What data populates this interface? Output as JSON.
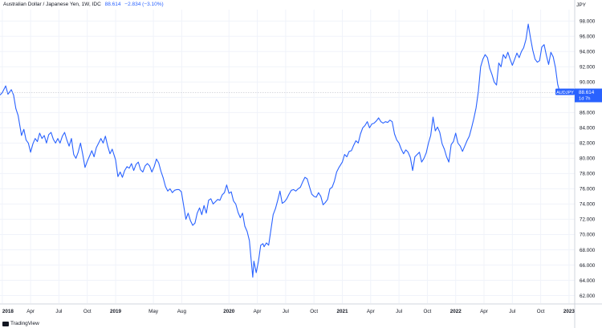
{
  "header": {
    "title": "Australian Dollar / Japanese Yen, 1W, IDC",
    "last": "88.614",
    "change": "−2.834 (−3.10%)"
  },
  "axis_unit": "JPY",
  "price_tag": {
    "symbol": "AUDJPY",
    "value": "88.614",
    "countdown": "1d 7h"
  },
  "brand": "TradingView",
  "colors": {
    "line": "#2962ff",
    "grid": "#f0f3fa",
    "tag_bg": "#2962ff",
    "text": "#131722"
  },
  "chart_data": {
    "type": "line",
    "title": "Australian Dollar / Japanese Yen, 1W, IDC",
    "ylabel": "JPY",
    "ylim": [
      61,
      99.5
    ],
    "y_ticks": [
      62,
      64,
      66,
      68,
      70,
      72,
      74,
      76,
      78,
      80,
      82,
      84,
      86,
      88,
      90,
      92,
      94,
      96,
      98
    ],
    "y_tick_labels": [
      "62.000",
      "64.000",
      "66.000",
      "68.000",
      "70.000",
      "72.000",
      "74.000",
      "76.000",
      "78.000",
      "80.000",
      "82.000",
      "84.000",
      "86.000",
      "88.000",
      "90.000",
      "92.000",
      "94.000",
      "96.000",
      "98.000"
    ],
    "x_ticks": [
      {
        "label": "2018",
        "t": 2018.0,
        "bold": true
      },
      {
        "label": "Apr",
        "t": 2018.25
      },
      {
        "label": "Jul",
        "t": 2018.5
      },
      {
        "label": "Oct",
        "t": 2018.75
      },
      {
        "label": "2019",
        "t": 2019.0,
        "bold": true
      },
      {
        "label": "May",
        "t": 2019.333
      },
      {
        "label": "Aug",
        "t": 2019.583
      },
      {
        "label": "2020",
        "t": 2020.0,
        "bold": true
      },
      {
        "label": "Apr",
        "t": 2020.25
      },
      {
        "label": "Jul",
        "t": 2020.5
      },
      {
        "label": "Oct",
        "t": 2020.75
      },
      {
        "label": "2021",
        "t": 2021.0,
        "bold": true
      },
      {
        "label": "Apr",
        "t": 2021.25
      },
      {
        "label": "Jul",
        "t": 2021.5
      },
      {
        "label": "Oct",
        "t": 2021.75
      },
      {
        "label": "2022",
        "t": 2022.0,
        "bold": true
      },
      {
        "label": "Apr",
        "t": 2022.25
      },
      {
        "label": "Jul",
        "t": 2022.5
      },
      {
        "label": "Oct",
        "t": 2022.75
      },
      {
        "label": "2023",
        "t": 2023.0,
        "bold": true
      }
    ],
    "grid": true,
    "series": [
      {
        "name": "AUDJPY",
        "points": [
          [
            2017.98,
            88.3
          ],
          [
            2018.0,
            88.6
          ],
          [
            2018.03,
            89.5
          ],
          [
            2018.05,
            88.4
          ],
          [
            2018.08,
            89.0
          ],
          [
            2018.1,
            88.3
          ],
          [
            2018.12,
            86.5
          ],
          [
            2018.14,
            85.6
          ],
          [
            2018.17,
            83.0
          ],
          [
            2018.19,
            83.8
          ],
          [
            2018.21,
            82.4
          ],
          [
            2018.23,
            82.0
          ],
          [
            2018.25,
            80.8
          ],
          [
            2018.27,
            81.9
          ],
          [
            2018.29,
            82.6
          ],
          [
            2018.31,
            82.2
          ],
          [
            2018.33,
            83.3
          ],
          [
            2018.35,
            82.6
          ],
          [
            2018.37,
            83.0
          ],
          [
            2018.39,
            82.0
          ],
          [
            2018.41,
            83.1
          ],
          [
            2018.43,
            83.4
          ],
          [
            2018.45,
            82.5
          ],
          [
            2018.47,
            82.0
          ],
          [
            2018.49,
            82.6
          ],
          [
            2018.51,
            82.0
          ],
          [
            2018.53,
            82.9
          ],
          [
            2018.55,
            83.4
          ],
          [
            2018.57,
            82.4
          ],
          [
            2018.59,
            81.6
          ],
          [
            2018.61,
            82.6
          ],
          [
            2018.63,
            80.5
          ],
          [
            2018.65,
            80.0
          ],
          [
            2018.67,
            80.8
          ],
          [
            2018.69,
            82.0
          ],
          [
            2018.71,
            80.5
          ],
          [
            2018.73,
            78.8
          ],
          [
            2018.75,
            79.6
          ],
          [
            2018.77,
            80.3
          ],
          [
            2018.79,
            81.0
          ],
          [
            2018.81,
            80.2
          ],
          [
            2018.83,
            81.4
          ],
          [
            2018.85,
            82.0
          ],
          [
            2018.87,
            82.6
          ],
          [
            2018.89,
            82.0
          ],
          [
            2018.91,
            82.9
          ],
          [
            2018.93,
            81.6
          ],
          [
            2018.95,
            80.6
          ],
          [
            2018.97,
            81.2
          ],
          [
            2019.0,
            79.8
          ],
          [
            2019.02,
            77.6
          ],
          [
            2019.04,
            78.2
          ],
          [
            2019.06,
            77.5
          ],
          [
            2019.08,
            78.4
          ],
          [
            2019.1,
            78.9
          ],
          [
            2019.12,
            78.7
          ],
          [
            2019.14,
            79.3
          ],
          [
            2019.16,
            78.4
          ],
          [
            2019.18,
            79.2
          ],
          [
            2019.2,
            79.5
          ],
          [
            2019.22,
            78.5
          ],
          [
            2019.24,
            78.2
          ],
          [
            2019.26,
            79.0
          ],
          [
            2019.28,
            79.3
          ],
          [
            2019.3,
            79.0
          ],
          [
            2019.32,
            78.2
          ],
          [
            2019.34,
            78.9
          ],
          [
            2019.36,
            79.9
          ],
          [
            2019.38,
            79.4
          ],
          [
            2019.4,
            78.3
          ],
          [
            2019.42,
            77.4
          ],
          [
            2019.44,
            76.3
          ],
          [
            2019.46,
            75.7
          ],
          [
            2019.48,
            76.0
          ],
          [
            2019.5,
            75.5
          ],
          [
            2019.52,
            75.8
          ],
          [
            2019.54,
            75.9
          ],
          [
            2019.56,
            75.9
          ],
          [
            2019.58,
            75.6
          ],
          [
            2019.6,
            73.8
          ],
          [
            2019.62,
            72.0
          ],
          [
            2019.64,
            72.8
          ],
          [
            2019.66,
            71.8
          ],
          [
            2019.68,
            71.2
          ],
          [
            2019.7,
            71.5
          ],
          [
            2019.72,
            72.8
          ],
          [
            2019.74,
            73.5
          ],
          [
            2019.76,
            72.6
          ],
          [
            2019.78,
            73.8
          ],
          [
            2019.8,
            72.8
          ],
          [
            2019.82,
            74.5
          ],
          [
            2019.84,
            74.7
          ],
          [
            2019.86,
            74.0
          ],
          [
            2019.88,
            74.3
          ],
          [
            2019.9,
            74.6
          ],
          [
            2019.92,
            74.5
          ],
          [
            2019.94,
            75.2
          ],
          [
            2019.96,
            75.5
          ],
          [
            2019.98,
            76.5
          ],
          [
            2020.0,
            75.4
          ],
          [
            2020.02,
            75.6
          ],
          [
            2020.04,
            74.4
          ],
          [
            2020.06,
            74.0
          ],
          [
            2020.08,
            72.9
          ],
          [
            2020.1,
            72.2
          ],
          [
            2020.12,
            72.8
          ],
          [
            2020.14,
            71.1
          ],
          [
            2020.16,
            70.4
          ],
          [
            2020.18,
            69.2
          ],
          [
            2020.2,
            66.0
          ],
          [
            2020.21,
            64.4
          ],
          [
            2020.22,
            66.5
          ],
          [
            2020.24,
            65.0
          ],
          [
            2020.26,
            66.5
          ],
          [
            2020.28,
            68.6
          ],
          [
            2020.3,
            68.8
          ],
          [
            2020.31,
            68.4
          ],
          [
            2020.33,
            68.9
          ],
          [
            2020.35,
            68.6
          ],
          [
            2020.37,
            70.6
          ],
          [
            2020.39,
            72.6
          ],
          [
            2020.41,
            73.4
          ],
          [
            2020.43,
            74.5
          ],
          [
            2020.45,
            75.7
          ],
          [
            2020.47,
            74.1
          ],
          [
            2020.49,
            74.3
          ],
          [
            2020.51,
            74.7
          ],
          [
            2020.53,
            75.3
          ],
          [
            2020.55,
            75.8
          ],
          [
            2020.57,
            75.9
          ],
          [
            2020.59,
            75.7
          ],
          [
            2020.61,
            76.0
          ],
          [
            2020.63,
            76.2
          ],
          [
            2020.65,
            76.9
          ],
          [
            2020.67,
            77.5
          ],
          [
            2020.69,
            77.3
          ],
          [
            2020.71,
            76.3
          ],
          [
            2020.73,
            75.3
          ],
          [
            2020.75,
            75.0
          ],
          [
            2020.77,
            74.9
          ],
          [
            2020.79,
            75.5
          ],
          [
            2020.81,
            75.0
          ],
          [
            2020.83,
            73.9
          ],
          [
            2020.85,
            74.2
          ],
          [
            2020.87,
            74.6
          ],
          [
            2020.89,
            76.0
          ],
          [
            2020.91,
            76.2
          ],
          [
            2020.93,
            77.0
          ],
          [
            2020.95,
            78.2
          ],
          [
            2020.97,
            78.8
          ],
          [
            2021.0,
            79.5
          ],
          [
            2021.02,
            80.5
          ],
          [
            2021.04,
            80.2
          ],
          [
            2021.06,
            80.9
          ],
          [
            2021.08,
            81.0
          ],
          [
            2021.1,
            81.7
          ],
          [
            2021.12,
            82.3
          ],
          [
            2021.14,
            82.0
          ],
          [
            2021.16,
            83.2
          ],
          [
            2021.18,
            84.0
          ],
          [
            2021.2,
            84.3
          ],
          [
            2021.22,
            84.8
          ],
          [
            2021.24,
            84.0
          ],
          [
            2021.26,
            84.5
          ],
          [
            2021.28,
            84.6
          ],
          [
            2021.3,
            84.9
          ],
          [
            2021.32,
            85.3
          ],
          [
            2021.34,
            84.8
          ],
          [
            2021.36,
            84.6
          ],
          [
            2021.38,
            84.8
          ],
          [
            2021.4,
            84.7
          ],
          [
            2021.42,
            85.0
          ],
          [
            2021.44,
            84.8
          ],
          [
            2021.46,
            83.2
          ],
          [
            2021.48,
            82.4
          ],
          [
            2021.5,
            82.0
          ],
          [
            2021.52,
            81.2
          ],
          [
            2021.54,
            80.6
          ],
          [
            2021.56,
            81.1
          ],
          [
            2021.58,
            80.8
          ],
          [
            2021.6,
            80.1
          ],
          [
            2021.62,
            78.4
          ],
          [
            2021.64,
            80.2
          ],
          [
            2021.66,
            80.5
          ],
          [
            2021.68,
            80.8
          ],
          [
            2021.7,
            79.5
          ],
          [
            2021.72,
            80.0
          ],
          [
            2021.74,
            80.7
          ],
          [
            2021.76,
            82.0
          ],
          [
            2021.78,
            83.0
          ],
          [
            2021.8,
            85.4
          ],
          [
            2021.82,
            83.6
          ],
          [
            2021.84,
            84.1
          ],
          [
            2021.86,
            83.4
          ],
          [
            2021.88,
            81.9
          ],
          [
            2021.9,
            81.2
          ],
          [
            2021.92,
            80.2
          ],
          [
            2021.94,
            79.5
          ],
          [
            2021.96,
            81.8
          ],
          [
            2021.98,
            82.2
          ],
          [
            2022.0,
            83.3
          ],
          [
            2022.02,
            82.0
          ],
          [
            2022.04,
            81.6
          ],
          [
            2022.06,
            80.9
          ],
          [
            2022.08,
            81.6
          ],
          [
            2022.1,
            82.3
          ],
          [
            2022.12,
            82.9
          ],
          [
            2022.14,
            84.0
          ],
          [
            2022.16,
            85.2
          ],
          [
            2022.18,
            86.6
          ],
          [
            2022.2,
            88.8
          ],
          [
            2022.22,
            92.0
          ],
          [
            2022.24,
            93.0
          ],
          [
            2022.26,
            93.6
          ],
          [
            2022.28,
            93.2
          ],
          [
            2022.3,
            91.8
          ],
          [
            2022.32,
            91.0
          ],
          [
            2022.34,
            90.0
          ],
          [
            2022.36,
            89.6
          ],
          [
            2022.38,
            92.5
          ],
          [
            2022.4,
            92.0
          ],
          [
            2022.42,
            93.6
          ],
          [
            2022.44,
            93.1
          ],
          [
            2022.46,
            93.9
          ],
          [
            2022.48,
            93.0
          ],
          [
            2022.5,
            92.2
          ],
          [
            2022.52,
            93.0
          ],
          [
            2022.54,
            93.8
          ],
          [
            2022.56,
            93.2
          ],
          [
            2022.58,
            94.0
          ],
          [
            2022.6,
            94.5
          ],
          [
            2022.62,
            95.6
          ],
          [
            2022.64,
            97.6
          ],
          [
            2022.66,
            95.8
          ],
          [
            2022.68,
            94.2
          ],
          [
            2022.7,
            93.0
          ],
          [
            2022.72,
            92.6
          ],
          [
            2022.74,
            92.8
          ],
          [
            2022.76,
            94.6
          ],
          [
            2022.78,
            94.9
          ],
          [
            2022.8,
            93.5
          ],
          [
            2022.82,
            92.3
          ],
          [
            2022.84,
            93.9
          ],
          [
            2022.86,
            93.3
          ],
          [
            2022.88,
            91.9
          ],
          [
            2022.9,
            89.7
          ],
          [
            2022.92,
            88.6
          ]
        ]
      }
    ]
  }
}
